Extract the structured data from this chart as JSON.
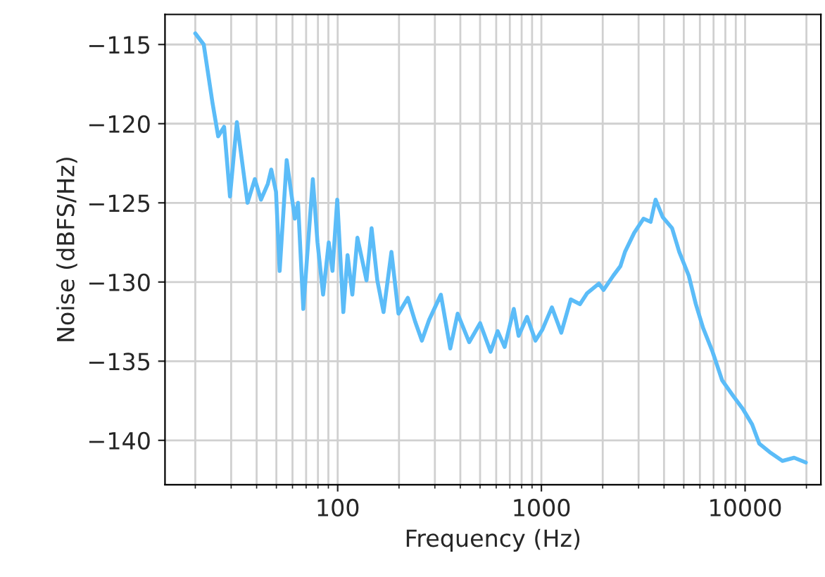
{
  "chart_data": {
    "type": "line",
    "xlabel": "Frequency (Hz)",
    "ylabel": "Noise (dBFS/Hz)",
    "log": "x",
    "grid": true,
    "line_style": "solid",
    "xlim": [
      14.2,
      23550
    ],
    "xticks": [
      100,
      1000,
      10000
    ],
    "ylim": [
      -142.8,
      -113.1
    ],
    "yticks": [
      -115,
      -120,
      -125,
      -130,
      -135,
      -140
    ],
    "series": [
      {
        "color": "#5bbcf8",
        "x": [
          20,
          22,
          24.3,
          25.9,
          27.7,
          29.6,
          32,
          36.1,
          39.2,
          42,
          45.4,
          47.2,
          49.8,
          51.9,
          56.2,
          61.6,
          63.9,
          67.8,
          75.5,
          79.6,
          84.8,
          90.4,
          94.3,
          99.5,
          106.6,
          111.8,
          118,
          125,
          138.5,
          146.7,
          156.5,
          167.9,
          183.6,
          198.8,
          221,
          240,
          259,
          281,
          321,
          357,
          388,
          442,
          500,
          563,
          610,
          660,
          732,
          773,
          850,
          935,
          1012,
          1126,
          1252,
          1394,
          1547,
          1678,
          1914,
          2020,
          2254,
          2442,
          2572,
          2853,
          3172,
          3438,
          3635,
          3939,
          4380,
          4750,
          5290,
          5730,
          6220,
          6920,
          7710,
          8750,
          9730,
          10830,
          11730,
          13390,
          15250,
          17400,
          19870
        ],
        "values": [
          -114.3,
          -115,
          -118.7,
          -120.8,
          -120.2,
          -124.6,
          -119.9,
          -125,
          -123.5,
          -124.8,
          -123.8,
          -122.9,
          -124.3,
          -129.3,
          -122.3,
          -126,
          -125,
          -131.7,
          -123.5,
          -127.5,
          -130.8,
          -127.5,
          -129.3,
          -124.8,
          -131.9,
          -128.3,
          -130.8,
          -127.2,
          -129.9,
          -126.6,
          -129.9,
          -131.9,
          -128.1,
          -132,
          -131,
          -132.5,
          -133.7,
          -132.4,
          -130.8,
          -134.2,
          -132,
          -133.8,
          -132.6,
          -134.4,
          -133.1,
          -134.1,
          -131.7,
          -133.4,
          -132.2,
          -133.7,
          -133,
          -131.6,
          -133.2,
          -131.1,
          -131.4,
          -130.7,
          -130.1,
          -130.5,
          -129.6,
          -129,
          -128.1,
          -126.9,
          -126,
          -126.2,
          -124.8,
          -125.9,
          -126.6,
          -128.1,
          -129.6,
          -131.4,
          -132.9,
          -134.4,
          -136.2,
          -137.2,
          -138,
          -139,
          -140.2,
          -140.8,
          -141.3,
          -141.1,
          -141.4
        ]
      }
    ]
  }
}
